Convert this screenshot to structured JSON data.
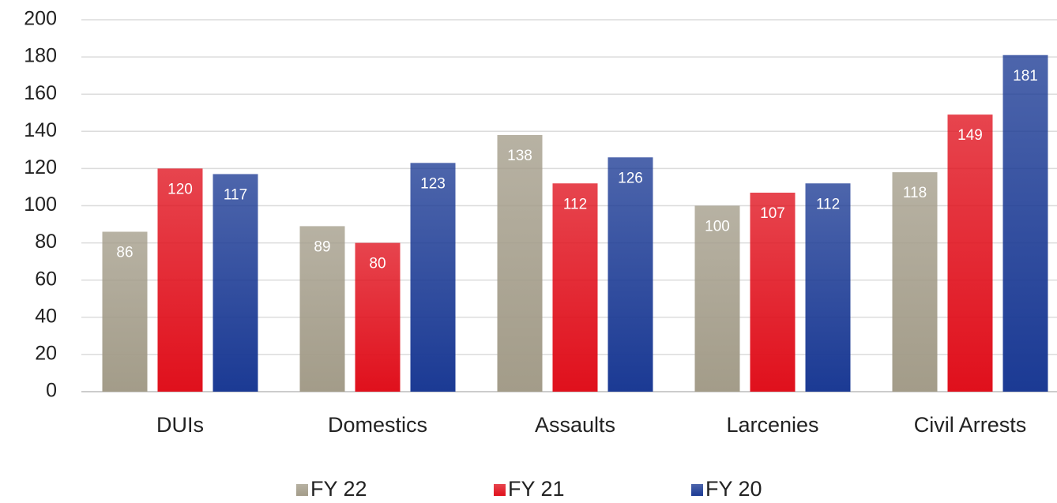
{
  "chart_data": {
    "type": "bar",
    "categories": [
      "DUIs",
      "Domestics",
      "Assaults",
      "Larcenies",
      "Civil Arrests"
    ],
    "series": [
      {
        "name": "FY 22",
        "color": "#a39c89",
        "values": [
          86,
          89,
          138,
          100,
          118
        ]
      },
      {
        "name": "FY 21",
        "color": "#e0101c",
        "values": [
          120,
          80,
          112,
          107,
          149
        ]
      },
      {
        "name": "FY 20",
        "color": "#1b3a94",
        "values": [
          117,
          123,
          126,
          112,
          181
        ]
      }
    ],
    "ylim": [
      0,
      200
    ],
    "yticks": [
      0,
      20,
      40,
      60,
      80,
      100,
      120,
      140,
      160,
      180,
      200
    ],
    "grid": true
  }
}
